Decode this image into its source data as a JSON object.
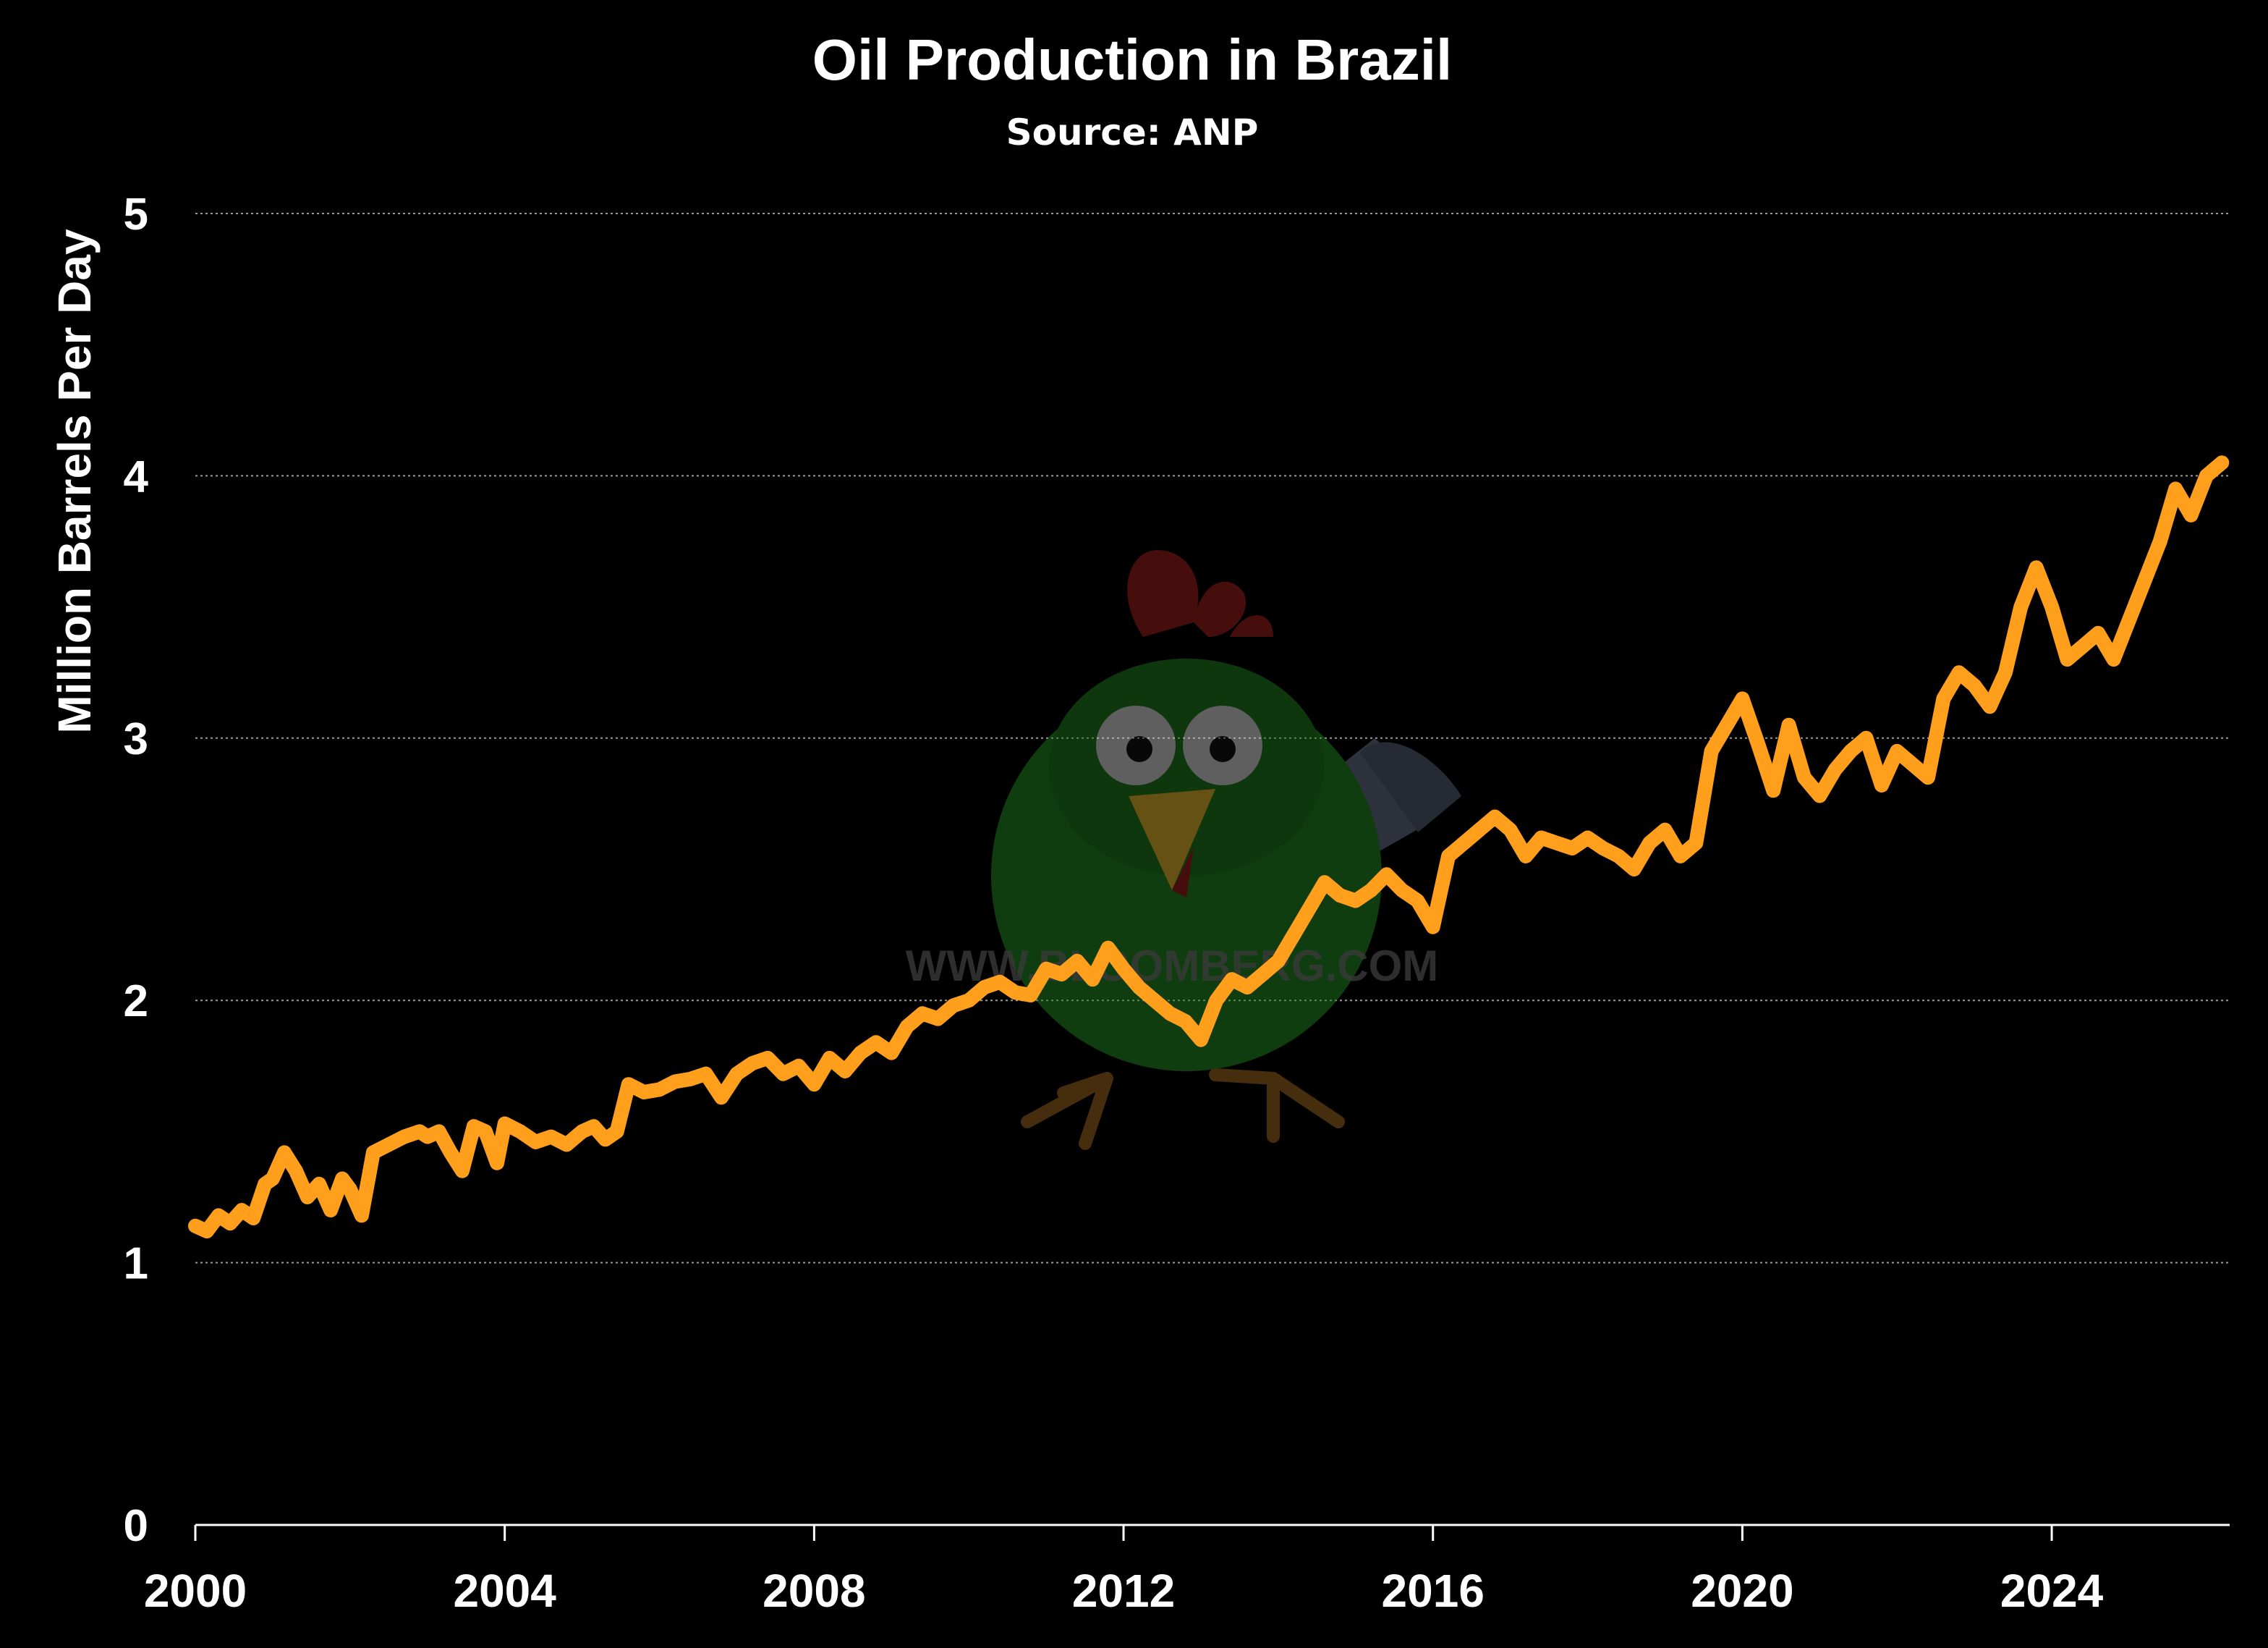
{
  "chart_data": {
    "type": "line",
    "title": "Oil Production in Brazil",
    "subtitle": "Source: ANP",
    "ylabel": "Million Barrels Per Day",
    "xlabel": "",
    "xlim": [
      2000,
      2026.3
    ],
    "ylim": [
      0,
      5
    ],
    "x_ticks": [
      "2000",
      "2004",
      "2008",
      "2012",
      "2016",
      "2020",
      "2024"
    ],
    "y_ticks": [
      "0",
      "1",
      "2",
      "3",
      "4",
      "5"
    ],
    "grid": true,
    "line_color": "#ff9f1c",
    "series": [
      {
        "x": [
          2000.0,
          2000.15,
          2000.3,
          2000.45,
          2000.6,
          2000.75,
          2000.9,
          2001.0,
          2001.15,
          2001.3,
          2001.45,
          2001.6,
          2001.75,
          2001.9,
          2002.0,
          2002.15,
          2002.3,
          2002.5,
          2002.7,
          2002.9,
          2003.0,
          2003.15,
          2003.3,
          2003.45,
          2003.6,
          2003.75,
          2003.9,
          2004.0,
          2004.2,
          2004.4,
          2004.6,
          2004.8,
          2005.0,
          2005.15,
          2005.3,
          2005.45,
          2005.6,
          2005.8,
          2006.0,
          2006.2,
          2006.4,
          2006.6,
          2006.8,
          2007.0,
          2007.2,
          2007.4,
          2007.6,
          2007.8,
          2008.0,
          2008.2,
          2008.4,
          2008.6,
          2008.8,
          2009.0,
          2009.2,
          2009.4,
          2009.6,
          2009.8,
          2010.0,
          2010.2,
          2010.4,
          2010.6,
          2010.8,
          2011.0,
          2011.2,
          2011.4,
          2011.6,
          2011.8,
          2012.0,
          2012.2,
          2012.4,
          2012.6,
          2012.8,
          2013.0,
          2013.2,
          2013.4,
          2013.6,
          2013.8,
          2014.0,
          2014.2,
          2014.4,
          2014.6,
          2014.8,
          2015.0,
          2015.2,
          2015.4,
          2015.6,
          2015.8,
          2016.0,
          2016.2,
          2016.4,
          2016.6,
          2016.8,
          2017.0,
          2017.2,
          2017.4,
          2017.6,
          2017.8,
          2018.0,
          2018.2,
          2018.4,
          2018.6,
          2018.8,
          2019.0,
          2019.2,
          2019.4,
          2019.6,
          2019.8,
          2020.0,
          2020.2,
          2020.4,
          2020.6,
          2020.8,
          2021.0,
          2021.2,
          2021.4,
          2021.6,
          2021.8,
          2022.0,
          2022.2,
          2022.4,
          2022.6,
          2022.8,
          2023.0,
          2023.2,
          2023.4,
          2023.6,
          2023.8,
          2024.0,
          2024.2,
          2024.4,
          2024.6,
          2024.8,
          2025.0,
          2025.2,
          2025.4,
          2025.6,
          2025.8,
          2026.0,
          2026.2
        ],
        "values": [
          1.14,
          1.12,
          1.18,
          1.15,
          1.2,
          1.17,
          1.3,
          1.32,
          1.42,
          1.35,
          1.25,
          1.3,
          1.2,
          1.32,
          1.28,
          1.18,
          1.42,
          1.45,
          1.48,
          1.5,
          1.48,
          1.5,
          1.42,
          1.35,
          1.52,
          1.5,
          1.38,
          1.53,
          1.5,
          1.46,
          1.48,
          1.45,
          1.5,
          1.52,
          1.47,
          1.5,
          1.68,
          1.65,
          1.66,
          1.69,
          1.7,
          1.72,
          1.63,
          1.72,
          1.76,
          1.78,
          1.72,
          1.75,
          1.68,
          1.78,
          1.73,
          1.8,
          1.84,
          1.8,
          1.9,
          1.95,
          1.93,
          1.98,
          2.0,
          2.05,
          2.07,
          2.03,
          2.02,
          2.12,
          2.1,
          2.15,
          2.08,
          2.2,
          2.12,
          2.05,
          2.0,
          1.95,
          1.92,
          1.85,
          2.0,
          2.08,
          2.05,
          2.1,
          2.15,
          2.25,
          2.35,
          2.45,
          2.4,
          2.38,
          2.42,
          2.48,
          2.42,
          2.38,
          2.28,
          2.55,
          2.6,
          2.65,
          2.7,
          2.65,
          2.55,
          2.62,
          2.6,
          2.58,
          2.62,
          2.58,
          2.55,
          2.5,
          2.6,
          2.65,
          2.55,
          2.6,
          2.95,
          3.05,
          3.15,
          2.98,
          2.8,
          3.05,
          2.85,
          2.78,
          2.88,
          2.95,
          3.0,
          2.82,
          2.95,
          2.9,
          2.85,
          3.15,
          3.25,
          3.2,
          3.12,
          3.25,
          3.5,
          3.65,
          3.5,
          3.3,
          3.35,
          3.4,
          3.3,
          3.45,
          3.6,
          3.75,
          3.95,
          3.85,
          4.0,
          4.05
        ]
      }
    ]
  },
  "watermark": "WWW.BLOOMBERG.COM"
}
